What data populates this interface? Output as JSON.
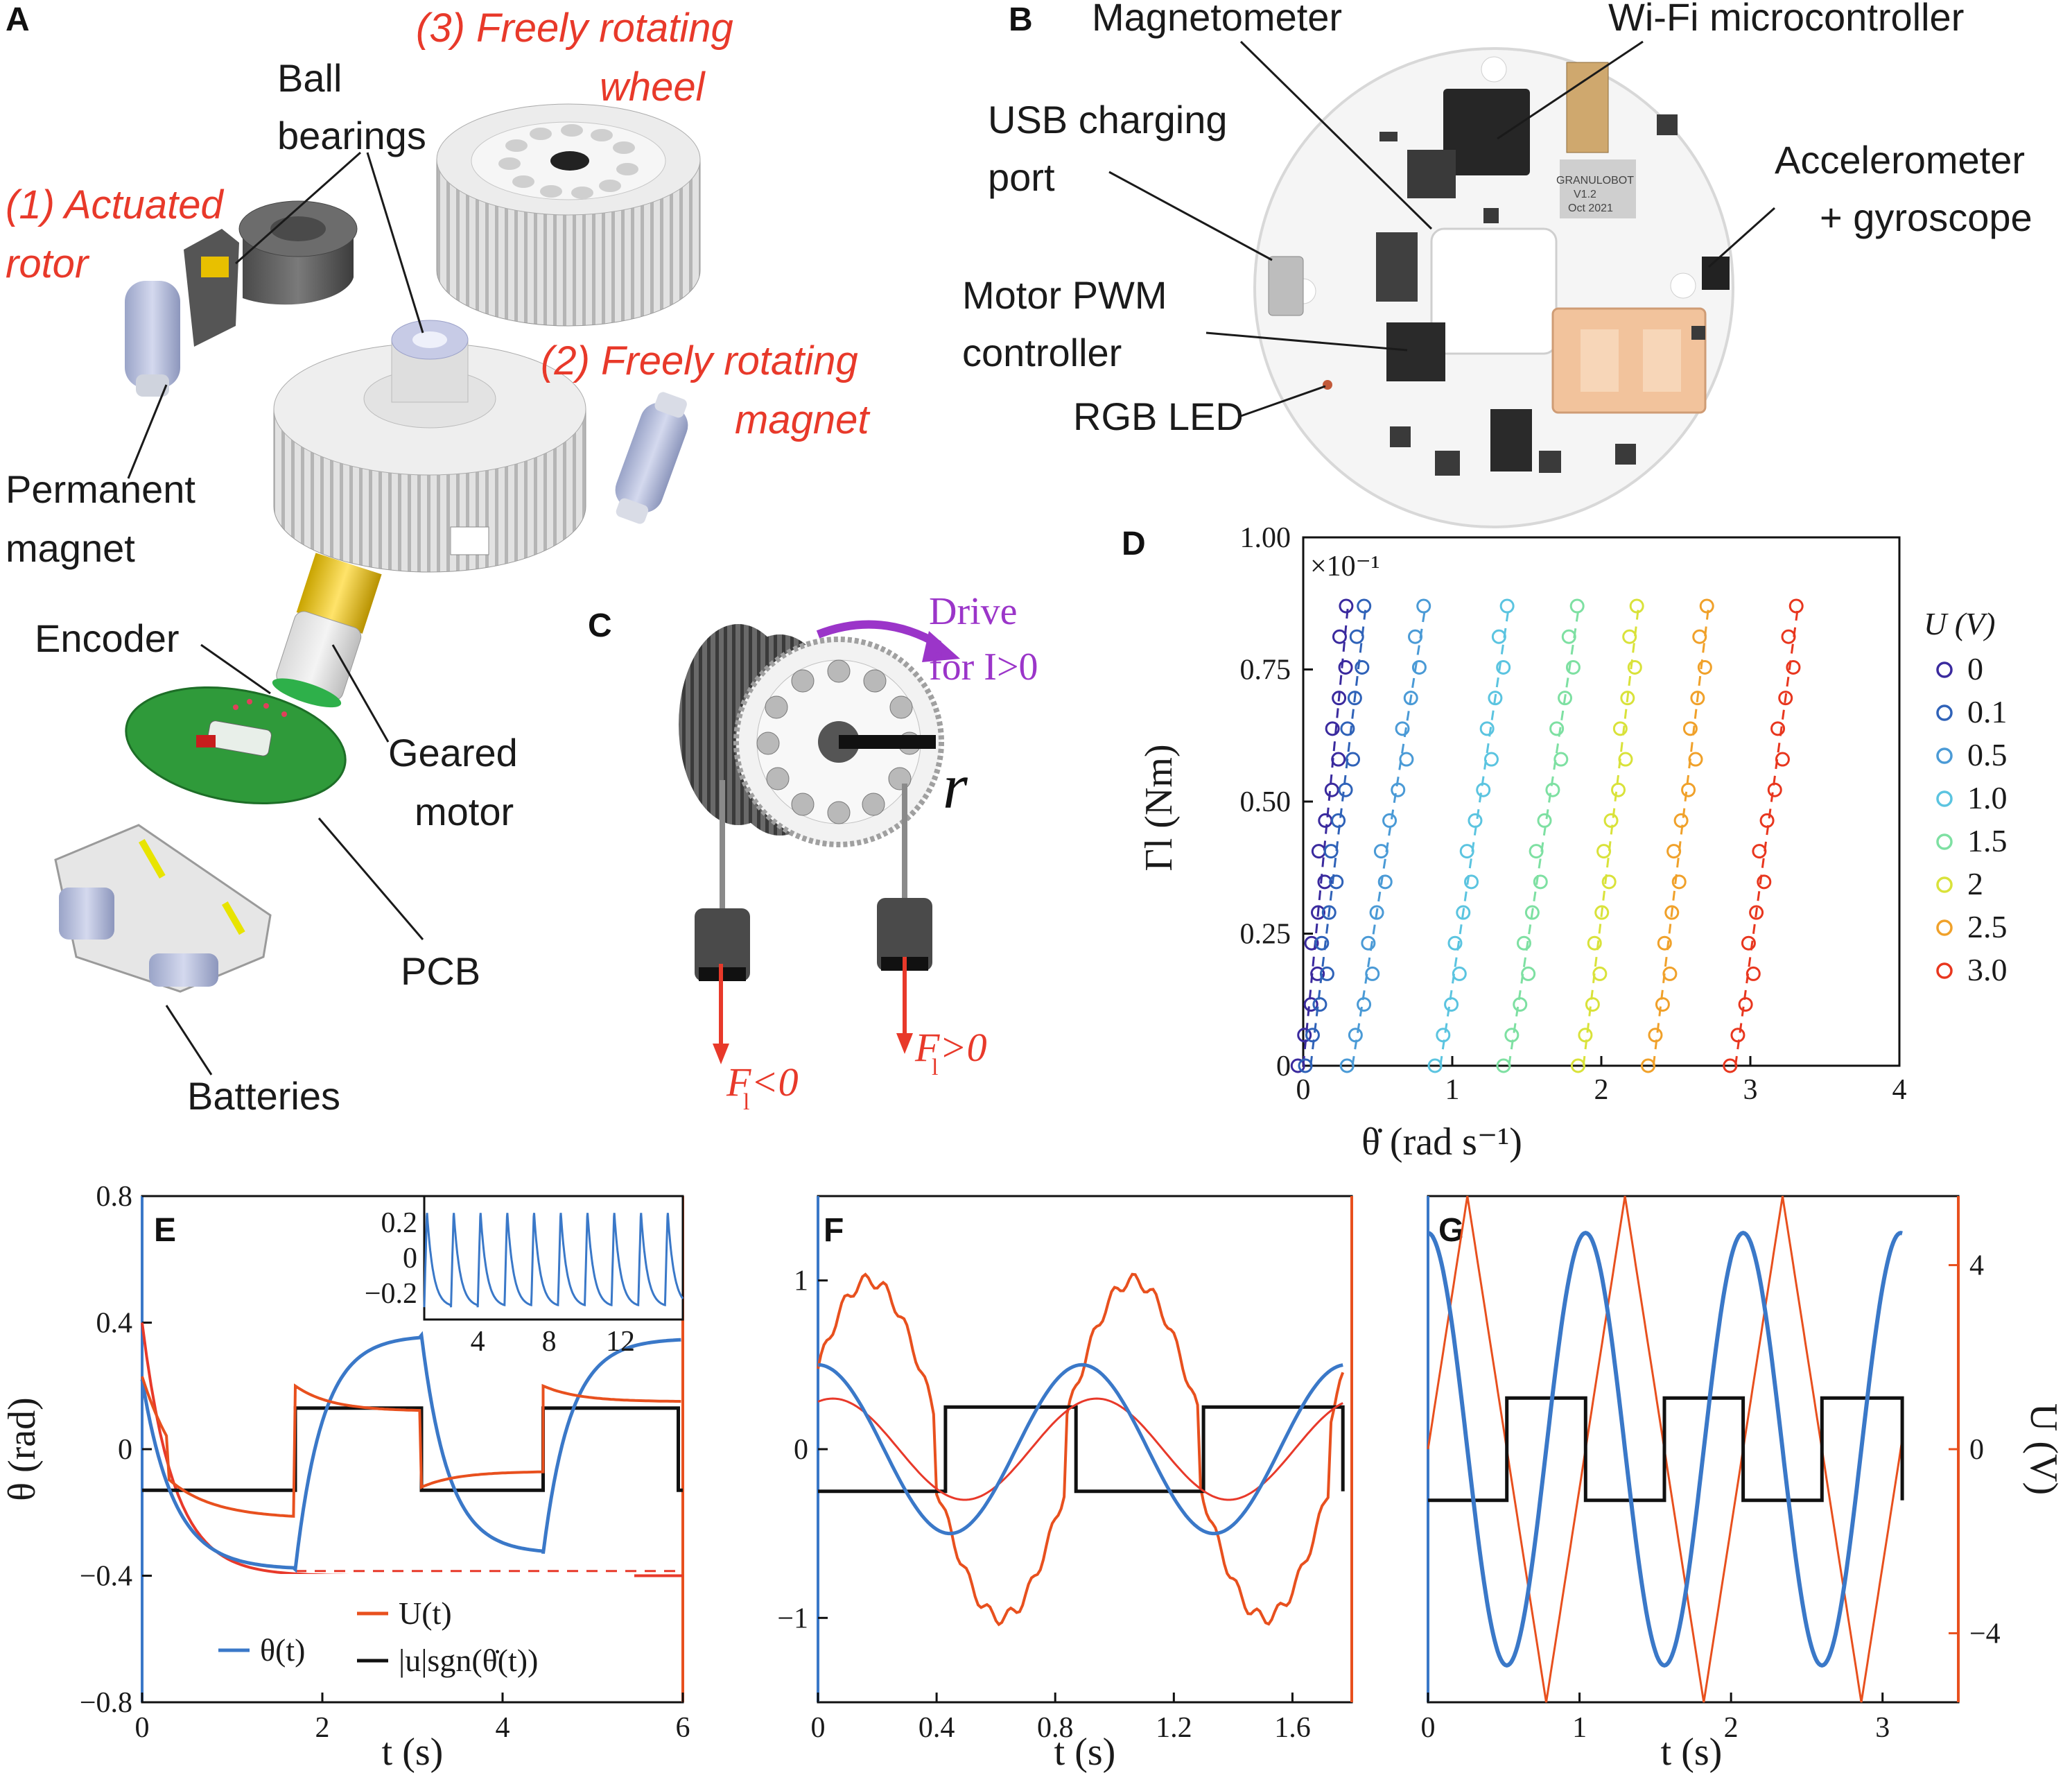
{
  "panels": {
    "A": "A",
    "B": "B",
    "C": "C",
    "D": "D",
    "E": "E",
    "F": "F",
    "G": "G"
  },
  "panel_a": {
    "actuated_rotor": [
      "(1) Actuated",
      "rotor"
    ],
    "freely_wheel": [
      "(3) Freely rotating",
      "wheel"
    ],
    "freely_magnet": [
      "(2) Freely rotating",
      "magnet"
    ],
    "ball_bearings": [
      "Ball",
      "bearings"
    ],
    "permanent_magnet": [
      "Permanent",
      "magnet"
    ],
    "encoder": "Encoder",
    "geared_motor": [
      "Geared",
      "motor"
    ],
    "pcb": "PCB",
    "batteries": "Batteries"
  },
  "panel_b": {
    "magnetometer": "Magnetometer",
    "wifi": "Wi-Fi microcontroller",
    "usb": [
      "USB charging",
      "port"
    ],
    "accel": [
      "Accelerometer",
      "+ gyroscope"
    ],
    "pwm": [
      "Motor PWM",
      "controller"
    ],
    "led": "RGB LED",
    "board_text": [
      "GRANULOBOT",
      "V1.2",
      "Oct 2021"
    ]
  },
  "panel_c": {
    "drive": [
      "Drive",
      "for I>0"
    ],
    "r": "r",
    "f_neg": "F<0",
    "f_pos": "F>0",
    "f_sub": "l"
  },
  "colors": {
    "blue": "#3a78c8",
    "orange": "#e8501e",
    "red": "#e8392a",
    "purple": "#9b35c9",
    "black": "#111111",
    "pcb_green": "#2f9a3a"
  },
  "chart_data": [
    {
      "id": "D",
      "type": "scatter",
      "xlabel": "θ̇ (rad s⁻¹)",
      "ylabel": "Γl (Nm)",
      "multiplier": "×10⁻¹",
      "xlim": [
        0,
        4
      ],
      "ylim": [
        0,
        1.0
      ],
      "xticks": [
        "0",
        "1",
        "2",
        "3",
        "4"
      ],
      "yticks": [
        "0",
        "0.25",
        "0.50",
        "0.75",
        "1.00"
      ],
      "legend_title": "U (V)",
      "legend_position": "right",
      "series": [
        {
          "name": "0",
          "color": "#3a2a9e",
          "x0": 0.0,
          "x1": 0.3
        },
        {
          "name": "0.1",
          "color": "#2f62b8",
          "x0": 0.05,
          "x1": 0.42
        },
        {
          "name": "0.5",
          "color": "#4a9ad6",
          "x0": 0.33,
          "x1": 0.82
        },
        {
          "name": "1.0",
          "color": "#5bc4e0",
          "x0": 0.92,
          "x1": 1.38
        },
        {
          "name": "1.5",
          "color": "#7ee0a2",
          "x0": 1.38,
          "x1": 1.85
        },
        {
          "name": "2",
          "color": "#d9e23a",
          "x0": 1.88,
          "x1": 2.25
        },
        {
          "name": "2.5",
          "color": "#f0a12a",
          "x0": 2.35,
          "x1": 2.72
        },
        {
          "name": "3.0",
          "color": "#e8361e",
          "x0": 2.9,
          "x1": 3.32
        }
      ]
    },
    {
      "id": "E",
      "type": "line",
      "xlabel": "t (s)",
      "ylabel": "θ (rad)",
      "xlim": [
        0,
        6
      ],
      "ylim": [
        -0.8,
        0.8
      ],
      "xticks": [
        "0",
        "2",
        "4",
        "6"
      ],
      "yticks": [
        "−0.8",
        "−0.4",
        "0",
        "0.4",
        "0.8"
      ],
      "legend": [
        "θ(t)",
        "U(t)",
        "|u|sgn(θ̇(t))"
      ],
      "inset": {
        "xticks": [
          "4",
          "8",
          "12"
        ],
        "yticks": [
          "0.2",
          "0",
          "−0.2"
        ]
      }
    },
    {
      "id": "F",
      "type": "line",
      "xlabel": "t (s)",
      "xlim": [
        0,
        1.8
      ],
      "ylim": [
        -1.5,
        1.5
      ],
      "xticks": [
        "0",
        "0.4",
        "0.8",
        "1.2",
        "1.6"
      ],
      "yticks": [
        "−1",
        "0",
        "1"
      ]
    },
    {
      "id": "G",
      "type": "line",
      "xlabel": "t (s)",
      "ylabel_right": "U (V)",
      "xlim": [
        0,
        3.5
      ],
      "ylim_right": [
        -5.5,
        5.5
      ],
      "xticks": [
        "0",
        "1",
        "2",
        "3"
      ],
      "yticks_right": [
        "4",
        "0",
        "−4"
      ]
    }
  ]
}
